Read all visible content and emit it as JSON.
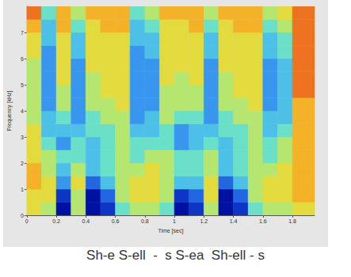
{
  "chart_data": {
    "type": "heatmap",
    "xlabel": "Time [sec]",
    "ylabel": "Frequency [kHz]",
    "annotation": "Sh-e S-ell  -  s S-ea  Sh-ell - s",
    "xlim": [
      0,
      1.95
    ],
    "ylim": [
      0,
      8
    ],
    "xticks": [
      0,
      0.2,
      0.4,
      0.6,
      0.8,
      1,
      1.2,
      1.4,
      1.6,
      1.8
    ],
    "yticks": [
      0,
      1,
      2,
      3,
      4,
      5,
      6,
      7
    ],
    "grid": false,
    "time_edges": [
      0,
      0.1,
      0.2,
      0.3,
      0.4,
      0.5,
      0.6,
      0.7,
      0.8,
      0.9,
      1,
      1.1,
      1.2,
      1.3,
      1.4,
      1.5,
      1.6,
      1.7,
      1.8,
      1.95
    ],
    "freq_edges": [
      0,
      0.5,
      1,
      1.5,
      2,
      2.5,
      3,
      3.5,
      4,
      4.5,
      5,
      5.5,
      6,
      6.5,
      7,
      7.5,
      8
    ],
    "zlim": [
      0,
      10
    ],
    "cells": [
      [
        3,
        3,
        2,
        2,
        3,
        3,
        3,
        4,
        4,
        4,
        4,
        4,
        3,
        3,
        2,
        1
      ],
      [
        4,
        3,
        3,
        4,
        4,
        5,
        6,
        6,
        7,
        7,
        7,
        7,
        7,
        6,
        6,
        5
      ],
      [
        10,
        9,
        7,
        6,
        5,
        7,
        6,
        5,
        4,
        4,
        3,
        3,
        3,
        3,
        2,
        2
      ],
      [
        4,
        4,
        3,
        4,
        5,
        5,
        6,
        7,
        7,
        7,
        7,
        7,
        6,
        6,
        5,
        4
      ],
      [
        10,
        10,
        8,
        6,
        6,
        6,
        5,
        5,
        4,
        4,
        4,
        3,
        3,
        3,
        3,
        2
      ],
      [
        9,
        8,
        6,
        5,
        5,
        5,
        5,
        4,
        4,
        3,
        3,
        3,
        3,
        3,
        2,
        2
      ],
      [
        5,
        4,
        4,
        4,
        4,
        4,
        4,
        4,
        3,
        3,
        3,
        3,
        3,
        3,
        2,
        2
      ],
      [
        4,
        3,
        3,
        4,
        5,
        5,
        6,
        7,
        7,
        7,
        7,
        7,
        7,
        6,
        6,
        5
      ],
      [
        4,
        3,
        3,
        3,
        4,
        5,
        6,
        6,
        7,
        7,
        7,
        7,
        6,
        6,
        5,
        4
      ],
      [
        5,
        4,
        4,
        4,
        4,
        5,
        5,
        4,
        4,
        4,
        3,
        3,
        3,
        3,
        3,
        2
      ],
      [
        10,
        9,
        6,
        5,
        5,
        7,
        7,
        5,
        4,
        4,
        4,
        3,
        3,
        3,
        3,
        2
      ],
      [
        9,
        8,
        6,
        5,
        5,
        6,
        6,
        5,
        4,
        4,
        3,
        3,
        3,
        3,
        2,
        2
      ],
      [
        4,
        3,
        3,
        4,
        4,
        5,
        6,
        7,
        7,
        7,
        7,
        7,
        6,
        6,
        5,
        4
      ],
      [
        10,
        10,
        8,
        6,
        6,
        6,
        5,
        5,
        4,
        4,
        4,
        3,
        3,
        3,
        3,
        2
      ],
      [
        9,
        8,
        6,
        5,
        5,
        5,
        5,
        4,
        4,
        3,
        3,
        3,
        3,
        3,
        2,
        2
      ],
      [
        5,
        4,
        4,
        4,
        4,
        4,
        4,
        4,
        3,
        3,
        3,
        3,
        3,
        3,
        2,
        2
      ],
      [
        4,
        3,
        3,
        4,
        5,
        5,
        6,
        6,
        7,
        7,
        7,
        7,
        6,
        6,
        5,
        4
      ],
      [
        4,
        3,
        3,
        3,
        4,
        4,
        5,
        6,
        6,
        6,
        6,
        6,
        5,
        5,
        4,
        3
      ],
      [
        3,
        2,
        2,
        2,
        2,
        2,
        2,
        2,
        2,
        1,
        1,
        1,
        1,
        1,
        1,
        1
      ]
    ]
  }
}
